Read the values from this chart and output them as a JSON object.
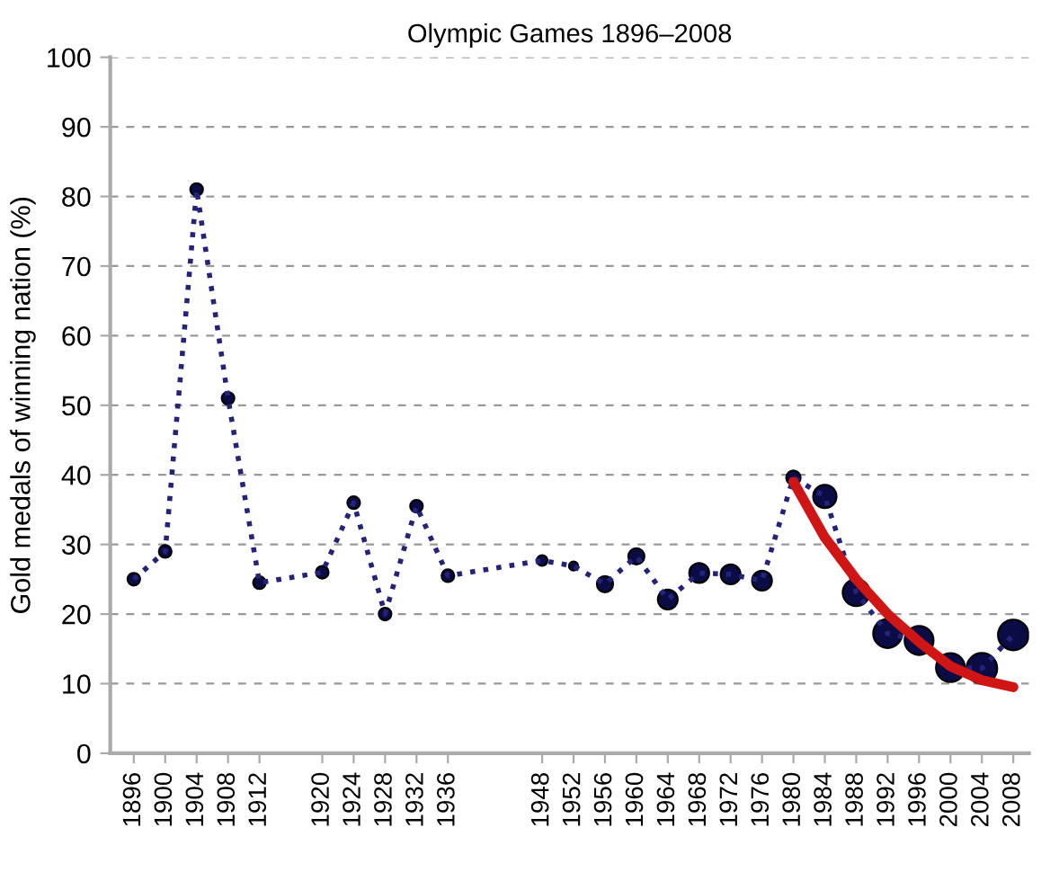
{
  "chart_data": {
    "type": "line",
    "title": "Olympic Games 1896–2008",
    "ylabel": "Gold medals of winning nation (%)",
    "xlim": [
      1893,
      2010
    ],
    "xticks": [
      1896,
      1900,
      1904,
      1908,
      1912,
      1920,
      1924,
      1928,
      1932,
      1936,
      1948,
      1952,
      1956,
      1960,
      1964,
      1968,
      1972,
      1976,
      1980,
      1984,
      1988,
      1992,
      1996,
      2000,
      2004,
      2008
    ],
    "ylim": [
      0,
      100
    ],
    "yticks": [
      0,
      10,
      20,
      30,
      40,
      50,
      60,
      70,
      80,
      90,
      100
    ],
    "grid": "y",
    "series": [
      {
        "line_style": "dotted",
        "color": "#23237a",
        "x": [
          1896,
          1900,
          1904,
          1908,
          1912,
          1920,
          1924,
          1928,
          1932,
          1936,
          1948,
          1952,
          1956,
          1960,
          1964,
          1968,
          1972,
          1976,
          1980,
          1984,
          1988,
          1992,
          1996,
          2000,
          2004,
          2008
        ],
        "values": [
          25,
          29,
          81,
          51,
          24.5,
          26,
          36,
          20,
          35.5,
          25.5,
          27.7,
          26.9,
          24.3,
          28.3,
          22.1,
          25.9,
          25.7,
          24.8,
          39.6,
          36.9,
          23.1,
          17.2,
          16.2,
          12.3,
          12.2,
          17
        ]
      },
      {
        "type": "bubble",
        "color": "#0b0b45",
        "x": [
          1896,
          1900,
          1904,
          1908,
          1912,
          1920,
          1924,
          1928,
          1932,
          1936,
          1948,
          1952,
          1956,
          1960,
          1964,
          1968,
          1972,
          1976,
          1980,
          1984,
          1988,
          1992,
          1996,
          2000,
          2004,
          2008
        ],
        "values": [
          25,
          29,
          81,
          51,
          24.5,
          26,
          36,
          20,
          35.5,
          25.5,
          27.7,
          26.9,
          24.3,
          28.3,
          22.1,
          25.9,
          25.7,
          24.8,
          39.6,
          36.9,
          23.1,
          17.2,
          16.2,
          12.3,
          12.2,
          17
        ],
        "sizes": [
          0.17,
          0.17,
          0.17,
          0.17,
          0.17,
          0.17,
          0.17,
          0.17,
          0.17,
          0.17,
          0.12,
          0.09,
          0.28,
          0.28,
          0.42,
          0.42,
          0.42,
          0.42,
          0.22,
          0.58,
          0.78,
          0.89,
          0.89,
          0.89,
          1,
          1
        ]
      },
      {
        "line_style": "solid",
        "color": "#d01515",
        "x": [
          1980,
          1984,
          1988,
          1992,
          1996,
          2000,
          2004,
          2008
        ],
        "values": [
          39,
          31,
          25,
          20,
          16,
          12.5,
          10.5,
          9.5
        ]
      }
    ]
  }
}
